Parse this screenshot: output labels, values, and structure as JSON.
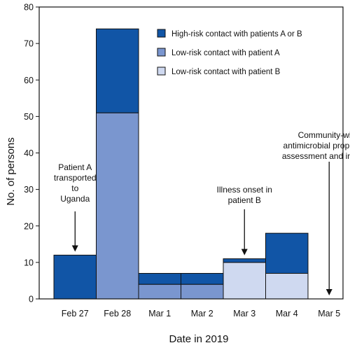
{
  "chart_data": {
    "type": "bar",
    "stacked": true,
    "xlabel": "Date in 2019",
    "ylabel": "No. of persons",
    "categories": [
      "Feb 27",
      "Feb 28",
      "Mar 1",
      "Mar 2",
      "Mar 3",
      "Mar 4",
      "Mar 5"
    ],
    "ylim": [
      0,
      80
    ],
    "yticks": [
      0,
      10,
      20,
      30,
      40,
      50,
      60,
      70,
      80
    ],
    "grid": false,
    "legend_position": "top-right",
    "series": [
      {
        "name": "Low-risk contact with patient A",
        "color": "#7a96cf",
        "values": [
          0,
          51,
          4,
          4,
          0,
          0,
          0
        ]
      },
      {
        "name": "Low-risk contact with patient B",
        "color": "#cfd9f0",
        "values": [
          0,
          0,
          0,
          0,
          10,
          7,
          0
        ]
      },
      {
        "name": "High-risk contact with patients A or B",
        "color": "#1155a6",
        "values": [
          12,
          23,
          3,
          3,
          1,
          11,
          0
        ]
      }
    ],
    "legend_order": [
      2,
      0,
      1
    ],
    "annotations": [
      {
        "category": "Feb 27",
        "lines": [
          "Patient A",
          "transported",
          "to",
          "Uganda"
        ]
      },
      {
        "category": "Mar 3",
        "lines": [
          "Illness onset in",
          "patient  B"
        ]
      },
      {
        "category": "Mar 5",
        "lines": [
          "Community-wide",
          "antimicrobial prophylaxis",
          "assessment and initiation"
        ]
      }
    ]
  }
}
